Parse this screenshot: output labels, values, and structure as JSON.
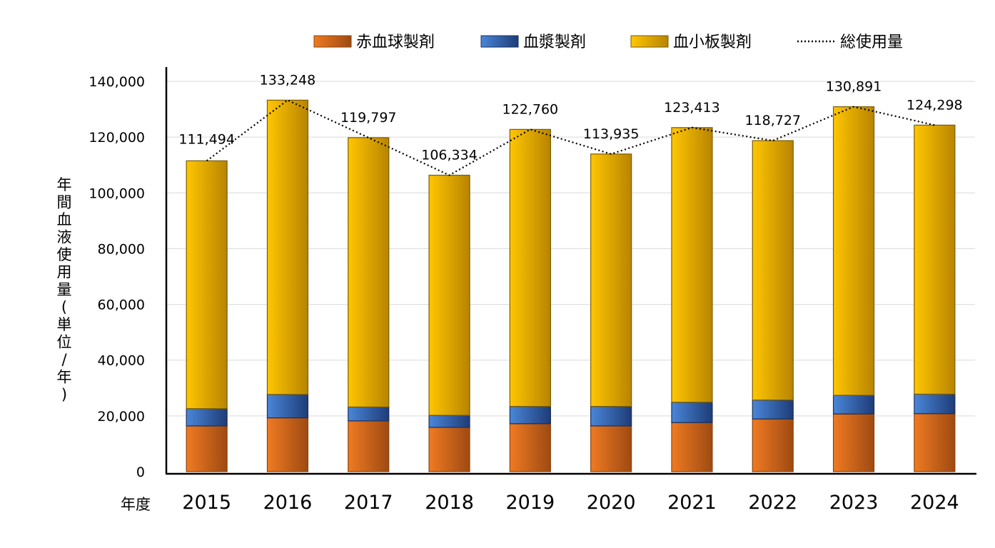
{
  "chart_data": {
    "type": "bar",
    "stacked": true,
    "categories": [
      "2015",
      "2016",
      "2017",
      "2018",
      "2019",
      "2020",
      "2021",
      "2022",
      "2023",
      "2024"
    ],
    "series": [
      {
        "name": "赤血球製剤",
        "values": [
          16400,
          19300,
          18200,
          15900,
          17200,
          16400,
          17600,
          18900,
          20700,
          20800
        ]
      },
      {
        "name": "血漿製剤",
        "values": [
          6200,
          8400,
          5000,
          4300,
          6200,
          7000,
          7300,
          6800,
          6700,
          7000
        ]
      },
      {
        "name": "血小板製剤",
        "values": [
          88894,
          105548,
          96597,
          86134,
          99360,
          90535,
          98513,
          93027,
          103491,
          96498
        ]
      }
    ],
    "line": {
      "name": "総使用量",
      "values": [
        111494,
        133248,
        119797,
        106334,
        122760,
        113935,
        123413,
        118727,
        130891,
        124298
      ]
    },
    "data_labels": [
      "111,494",
      "133,248",
      "119,797",
      "106,334",
      "122,760",
      "113,935",
      "123,413",
      "118,727",
      "130,891",
      "124,298"
    ],
    "y_ticks": [
      "0",
      "20,000",
      "40,000",
      "60,000",
      "80,000",
      "100,000",
      "120,000",
      "140,000"
    ],
    "ylim": [
      0,
      140000
    ],
    "ylabel": "年間血液使用量(単位/年)",
    "xlabel": "年度",
    "grid": true,
    "legend_position": "top"
  },
  "colors": {
    "red_cell": "#e8701e",
    "plasma": "#2f64b8",
    "platelet": "#f5b800",
    "total_line": "#000000",
    "grid": "#d9d9d9"
  }
}
